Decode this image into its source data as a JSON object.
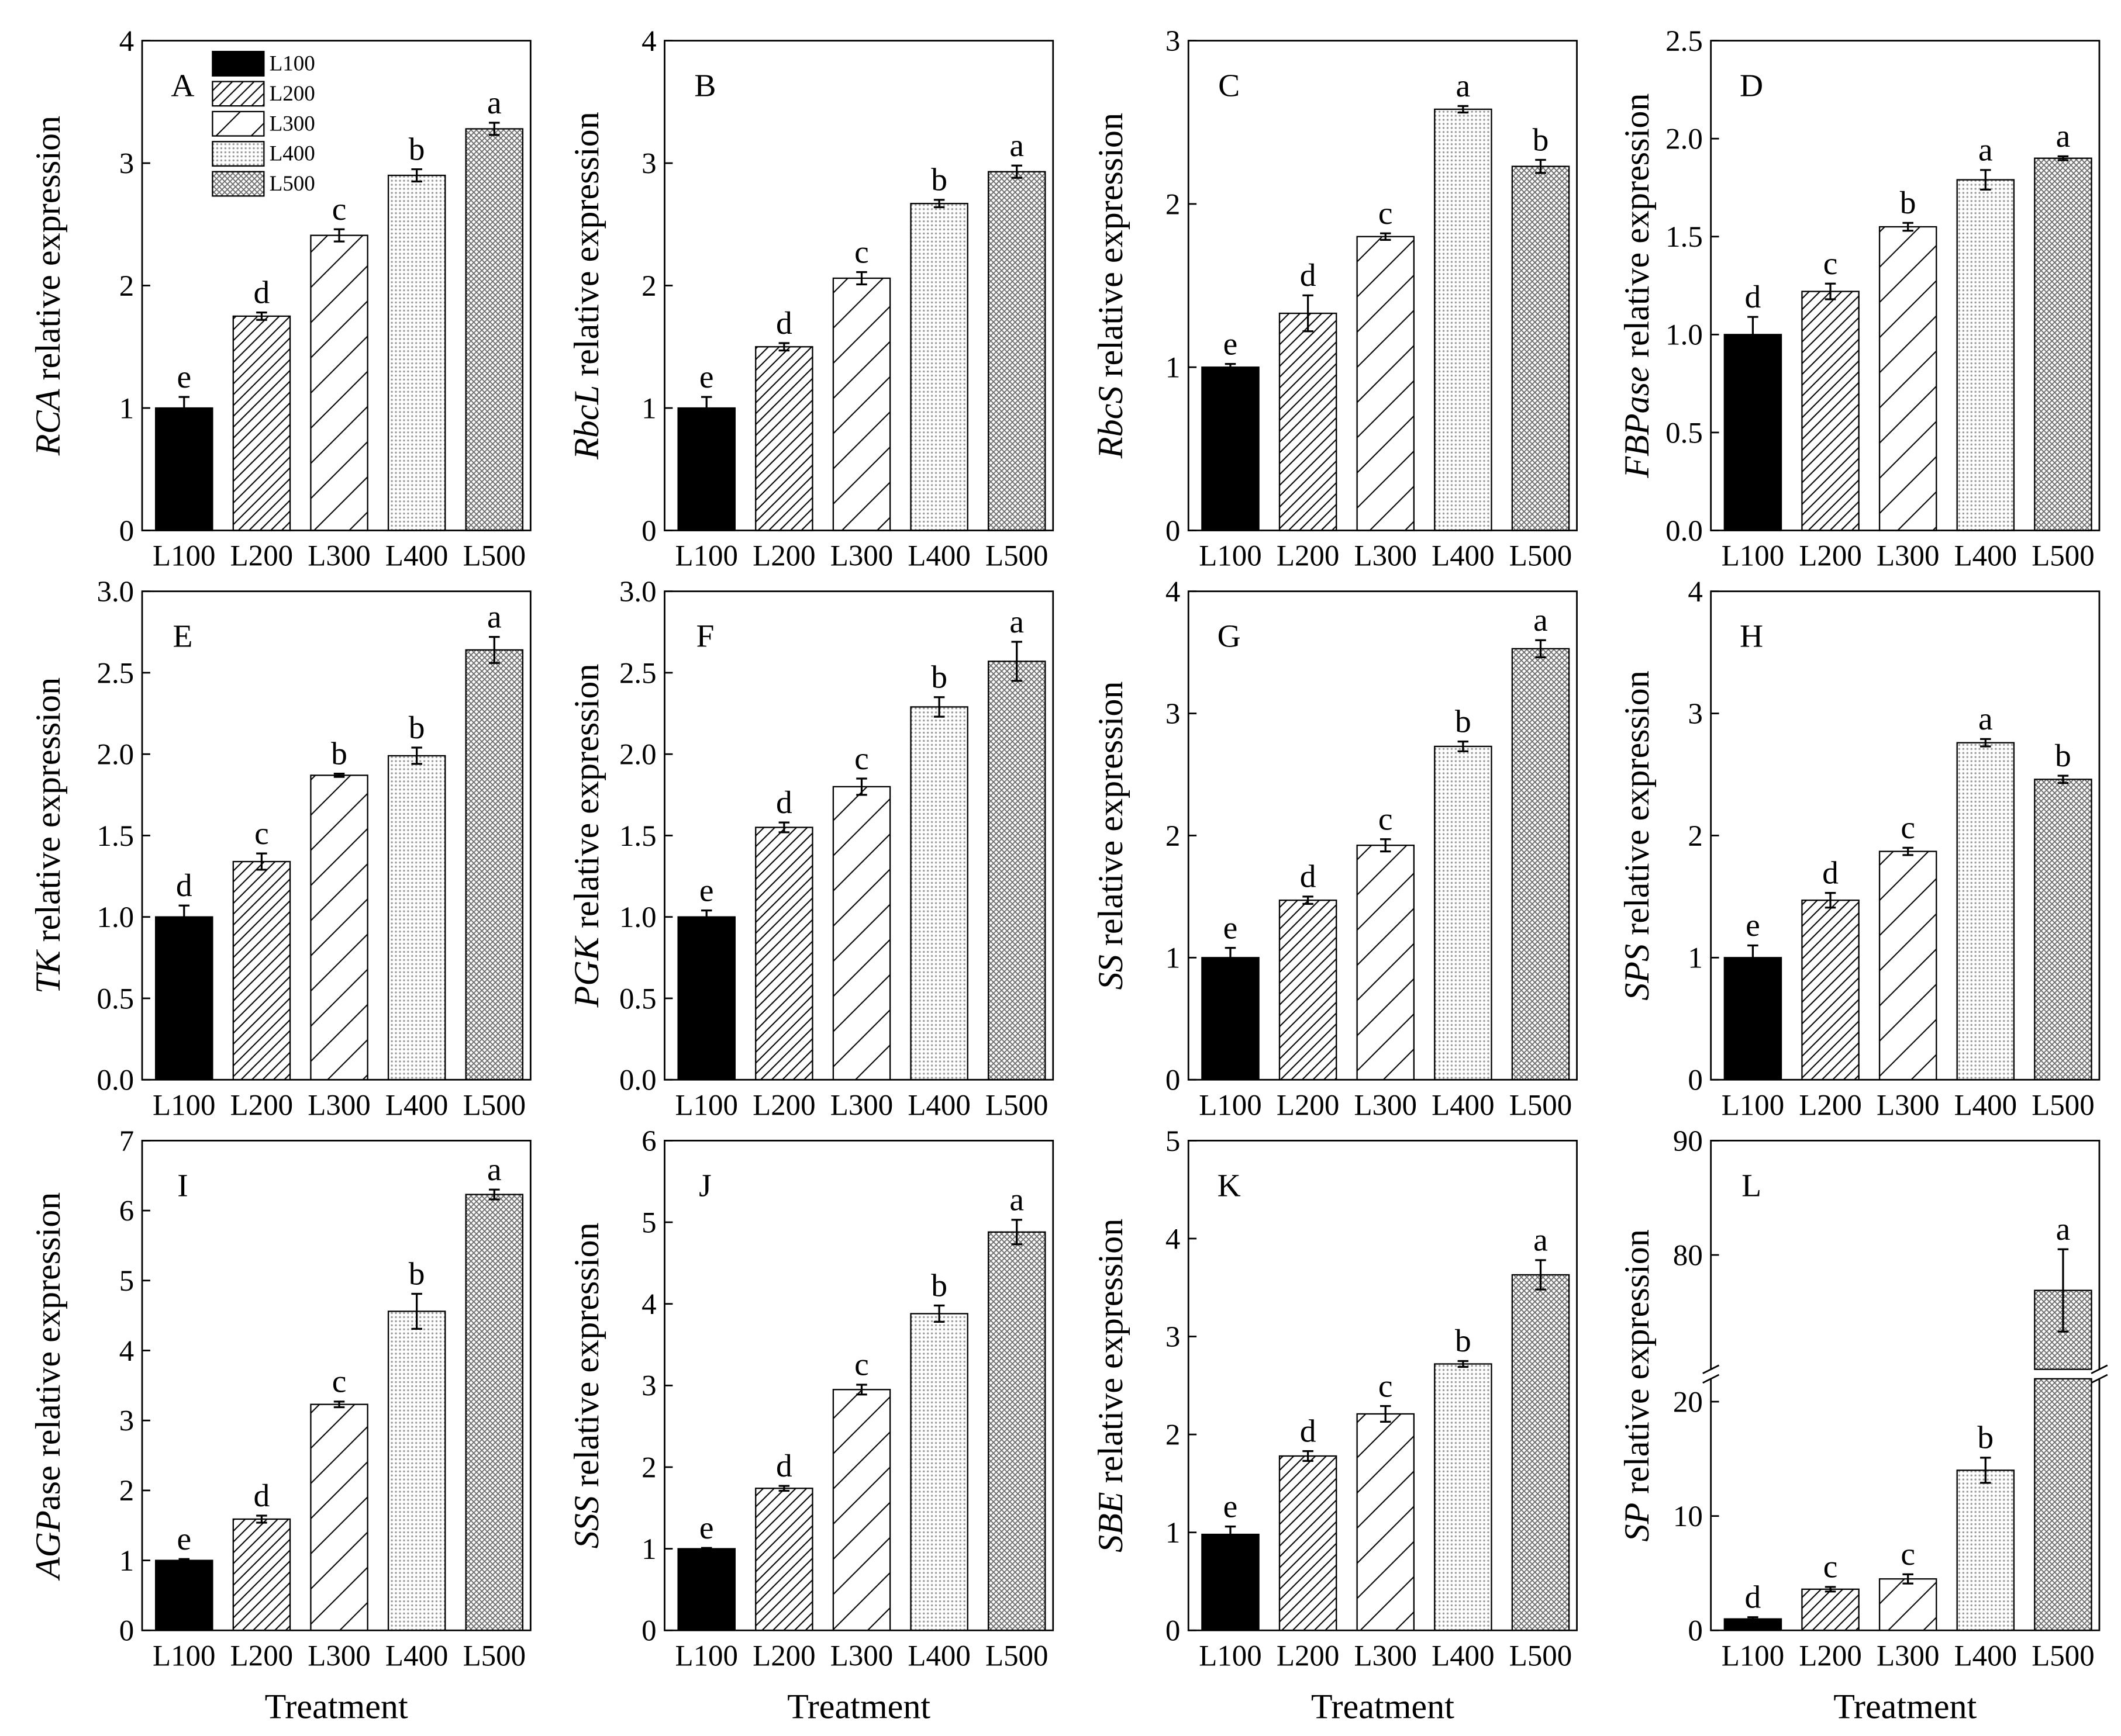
{
  "colors": {
    "axis": "#000000",
    "solid": "#000000"
  },
  "legend": {
    "entries": [
      "L100",
      "L200",
      "L300",
      "L400",
      "L500"
    ]
  },
  "chart_data": [
    {
      "panel": "A",
      "type": "bar",
      "categories": [
        "L100",
        "L200",
        "L300",
        "L400",
        "L500"
      ],
      "values": [
        1.0,
        1.75,
        2.41,
        2.9,
        3.28
      ],
      "errors": [
        0.09,
        0.03,
        0.05,
        0.05,
        0.05
      ],
      "letters": [
        "e",
        "d",
        "c",
        "b",
        "a"
      ],
      "ylabel": {
        "italic": "RCA",
        "plain": " relative expression"
      },
      "ylim": [
        0,
        4
      ],
      "yticks": [
        "0",
        "1",
        "2",
        "3",
        "4"
      ]
    },
    {
      "panel": "B",
      "type": "bar",
      "categories": [
        "L100",
        "L200",
        "L300",
        "L400",
        "L500"
      ],
      "values": [
        1.0,
        1.5,
        2.06,
        2.67,
        2.93
      ],
      "errors": [
        0.09,
        0.03,
        0.05,
        0.03,
        0.05
      ],
      "letters": [
        "e",
        "d",
        "c",
        "b",
        "a"
      ],
      "ylabel": {
        "italic": "RbcL",
        "plain": " relative expression"
      },
      "ylim": [
        0,
        4
      ],
      "yticks": [
        "0",
        "1",
        "2",
        "3",
        "4"
      ]
    },
    {
      "panel": "C",
      "type": "bar",
      "categories": [
        "L100",
        "L200",
        "L300",
        "L400",
        "L500"
      ],
      "values": [
        1.0,
        1.33,
        1.8,
        2.58,
        2.23
      ],
      "errors": [
        0.02,
        0.11,
        0.02,
        0.02,
        0.04
      ],
      "letters": [
        "e",
        "d",
        "c",
        "a",
        "b"
      ],
      "ylabel": {
        "italic": "RbcS",
        "plain": " relative expression"
      },
      "ylim": [
        0,
        3
      ],
      "yticks": [
        "0",
        "1",
        "2",
        "3"
      ]
    },
    {
      "panel": "D",
      "type": "bar",
      "categories": [
        "L100",
        "L200",
        "L300",
        "L400",
        "L500"
      ],
      "values": [
        1.0,
        1.22,
        1.55,
        1.79,
        1.9
      ],
      "errors": [
        0.09,
        0.04,
        0.02,
        0.05,
        0.01
      ],
      "letters": [
        "d",
        "c",
        "b",
        "a",
        "a"
      ],
      "ylabel": {
        "italic": "FBPase",
        "plain": " relative expression"
      },
      "ylim": [
        0,
        2.5
      ],
      "yticks": [
        "0.0",
        "0.5",
        "1.0",
        "1.5",
        "2.0",
        "2.5"
      ]
    },
    {
      "panel": "E",
      "type": "bar",
      "categories": [
        "L100",
        "L200",
        "L300",
        "L400",
        "L500"
      ],
      "values": [
        1.0,
        1.34,
        1.87,
        1.99,
        2.64
      ],
      "errors": [
        0.07,
        0.05,
        0.01,
        0.05,
        0.08
      ],
      "letters": [
        "d",
        "c",
        "b",
        "b",
        "a"
      ],
      "ylabel": {
        "italic": "TK",
        "plain": " relative expression"
      },
      "ylim": [
        0,
        3.0
      ],
      "yticks": [
        "0.0",
        "0.5",
        "1.0",
        "1.5",
        "2.0",
        "2.5",
        "3.0"
      ]
    },
    {
      "panel": "F",
      "type": "bar",
      "categories": [
        "L100",
        "L200",
        "L300",
        "L400",
        "L500"
      ],
      "values": [
        1.0,
        1.55,
        1.8,
        2.29,
        2.57
      ],
      "errors": [
        0.04,
        0.03,
        0.05,
        0.06,
        0.12
      ],
      "letters": [
        "e",
        "d",
        "c",
        "b",
        "a"
      ],
      "ylabel": {
        "italic": "PGK",
        "plain": " relative expression"
      },
      "ylim": [
        0,
        3.0
      ],
      "yticks": [
        "0.0",
        "0.5",
        "1.0",
        "1.5",
        "2.0",
        "2.5",
        "3.0"
      ]
    },
    {
      "panel": "G",
      "type": "bar",
      "categories": [
        "L100",
        "L200",
        "L300",
        "L400",
        "L500"
      ],
      "values": [
        1.0,
        1.47,
        1.92,
        2.73,
        3.53
      ],
      "errors": [
        0.08,
        0.03,
        0.05,
        0.04,
        0.07
      ],
      "letters": [
        "e",
        "d",
        "c",
        "b",
        "a"
      ],
      "ylabel": {
        "italic": "SS",
        "plain": " relative expression"
      },
      "ylim": [
        0,
        4
      ],
      "yticks": [
        "0",
        "1",
        "2",
        "3",
        "4"
      ]
    },
    {
      "panel": "H",
      "type": "bar",
      "categories": [
        "L100",
        "L200",
        "L300",
        "L400",
        "L500"
      ],
      "values": [
        1.0,
        1.47,
        1.87,
        2.76,
        2.46
      ],
      "errors": [
        0.1,
        0.06,
        0.03,
        0.03,
        0.03
      ],
      "letters": [
        "e",
        "d",
        "c",
        "a",
        "b"
      ],
      "ylabel": {
        "italic": "SPS",
        "plain": " relative expression"
      },
      "ylim": [
        0,
        4
      ],
      "yticks": [
        "0",
        "1",
        "2",
        "3",
        "4"
      ]
    },
    {
      "panel": "I",
      "type": "bar",
      "categories": [
        "L100",
        "L200",
        "L300",
        "L400",
        "L500"
      ],
      "values": [
        1.0,
        1.59,
        3.23,
        4.56,
        6.23
      ],
      "errors": [
        0.02,
        0.05,
        0.04,
        0.25,
        0.07
      ],
      "letters": [
        "e",
        "d",
        "c",
        "b",
        "a"
      ],
      "ylabel": {
        "italic": "AGP",
        "plain": "ase relative expression"
      },
      "ylim": [
        0,
        7
      ],
      "yticks": [
        "0",
        "1",
        "2",
        "3",
        "4",
        "5",
        "6",
        "7"
      ],
      "xlabel": "Treatment"
    },
    {
      "panel": "J",
      "type": "bar",
      "categories": [
        "L100",
        "L200",
        "L300",
        "L400",
        "L500"
      ],
      "values": [
        1.0,
        1.74,
        2.95,
        3.88,
        4.88
      ],
      "errors": [
        0.01,
        0.03,
        0.06,
        0.1,
        0.15
      ],
      "letters": [
        "e",
        "d",
        "c",
        "b",
        "a"
      ],
      "ylabel": {
        "italic": "SSS",
        "plain": " relative expression"
      },
      "ylim": [
        0,
        6
      ],
      "yticks": [
        "0",
        "1",
        "2",
        "3",
        "4",
        "5",
        "6"
      ],
      "xlabel": "Treatment"
    },
    {
      "panel": "K",
      "type": "bar",
      "categories": [
        "L100",
        "L200",
        "L300",
        "L400",
        "L500"
      ],
      "values": [
        0.98,
        1.78,
        2.21,
        2.72,
        3.63
      ],
      "errors": [
        0.08,
        0.05,
        0.08,
        0.03,
        0.15
      ],
      "letters": [
        "e",
        "d",
        "c",
        "b",
        "a"
      ],
      "ylabel": {
        "italic": "SBE",
        "plain": " relative expression"
      },
      "ylim": [
        0,
        5
      ],
      "yticks": [
        "0",
        "1",
        "2",
        "3",
        "4",
        "5"
      ],
      "xlabel": "Treatment"
    },
    {
      "panel": "L",
      "type": "bar",
      "categories": [
        "L100",
        "L200",
        "L300",
        "L400",
        "L500"
      ],
      "values": [
        1.0,
        3.6,
        4.5,
        14.0,
        76.9
      ],
      "errors": [
        0.15,
        0.2,
        0.4,
        1.1,
        3.6
      ],
      "letters": [
        "d",
        "c",
        "c",
        "b",
        "a"
      ],
      "ylabel": {
        "italic": "SP",
        "plain": " relative expression"
      },
      "ylim_break": {
        "lower": [
          0,
          22
        ],
        "upper": [
          70,
          90
        ]
      },
      "yticks": [
        "0",
        "10",
        "20",
        "80",
        "90"
      ],
      "xlabel": "Treatment"
    }
  ]
}
